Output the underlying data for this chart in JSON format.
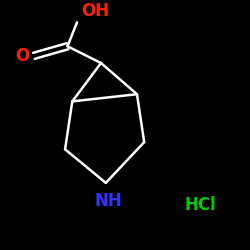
{
  "background_color": "#000000",
  "bond_color": "#ffffff",
  "O_color": "#ff2200",
  "N_color": "#3333ff",
  "HCl_color": "#00cc00",
  "OH_text": "OH",
  "O_text": "O",
  "NH_text": "NH",
  "HCl_text": "HCl",
  "figsize": [
    2.5,
    2.5
  ],
  "dpi": 100
}
